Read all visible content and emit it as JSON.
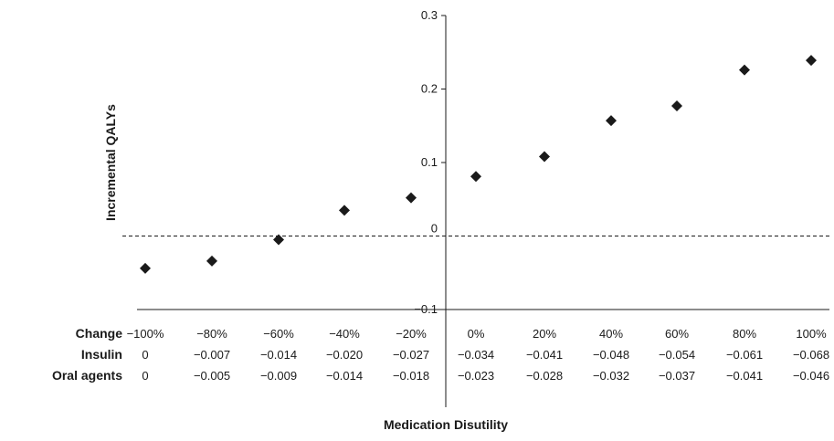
{
  "chart_data": {
    "type": "scatter",
    "title": "",
    "ylabel": "Incremental QALYs",
    "xlabel": "Medication Disutility",
    "ylim": [
      -0.1,
      0.3
    ],
    "yticks": [
      "0.3",
      "0.2",
      "0.1",
      "0",
      "−0.1"
    ],
    "ytick_values": [
      0.3,
      0.2,
      0.1,
      0,
      -0.1
    ],
    "zero_line": "dashed",
    "marker": "diamond",
    "marker_color": "#1a1a1a",
    "categories": [
      "−100%",
      "−80%",
      "−60%",
      "−40%",
      "−20%",
      "0%",
      "20%",
      "40%",
      "60%",
      "80%",
      "100%"
    ],
    "values": [
      -0.044,
      -0.034,
      -0.005,
      0.035,
      0.052,
      0.081,
      0.108,
      0.157,
      0.177,
      0.226,
      0.239
    ],
    "table": {
      "rows": [
        {
          "label": "Change",
          "cells": [
            "−100%",
            "−80%",
            "−60%",
            "−40%",
            "−20%",
            "0%",
            "20%",
            "40%",
            "60%",
            "80%",
            "100%"
          ]
        },
        {
          "label": "Insulin",
          "cells": [
            "0",
            "−0.007",
            "−0.014",
            "−0.020",
            "−0.027",
            "−0.034",
            "−0.041",
            "−0.048",
            "−0.054",
            "−0.061",
            "−0.068"
          ]
        },
        {
          "label": "Oral agents",
          "cells": [
            "0",
            "−0.005",
            "−0.009",
            "−0.014",
            "−0.018",
            "−0.023",
            "−0.028",
            "−0.032",
            "−0.037",
            "−0.041",
            "−0.046"
          ]
        }
      ]
    }
  }
}
